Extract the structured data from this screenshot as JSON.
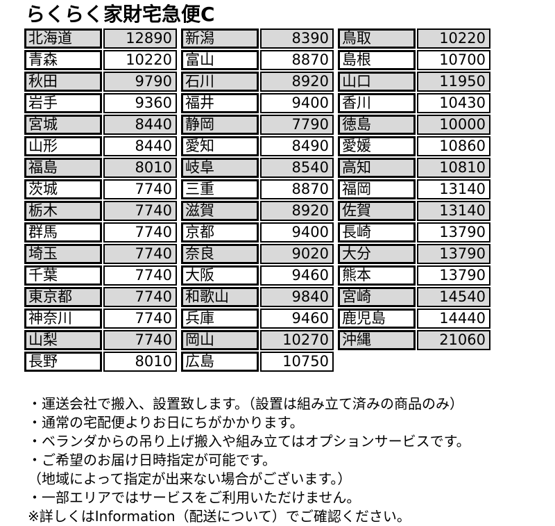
{
  "title": "らくらく家財宅急便C",
  "colors": {
    "row_shade": "#d9d9d9",
    "row_plain": "#ffffff",
    "border": "#000000",
    "text": "#000000"
  },
  "shipping_table": {
    "columns": [
      {
        "rows": [
          {
            "prefecture": "北海道",
            "price": "12890"
          },
          {
            "prefecture": "青森",
            "price": "10220"
          },
          {
            "prefecture": "秋田",
            "price": "9790"
          },
          {
            "prefecture": "岩手",
            "price": "9360"
          },
          {
            "prefecture": "宮城",
            "price": "8440"
          },
          {
            "prefecture": "山形",
            "price": "8440"
          },
          {
            "prefecture": "福島",
            "price": "8010"
          },
          {
            "prefecture": "茨城",
            "price": "7740"
          },
          {
            "prefecture": "栃木",
            "price": "7740"
          },
          {
            "prefecture": "群馬",
            "price": "7740"
          },
          {
            "prefecture": "埼玉",
            "price": "7740"
          },
          {
            "prefecture": "千葉",
            "price": "7740"
          },
          {
            "prefecture": "東京都",
            "price": "7740"
          },
          {
            "prefecture": "神奈川",
            "price": "7740"
          },
          {
            "prefecture": "山梨",
            "price": "7740"
          },
          {
            "prefecture": "長野",
            "price": "8010"
          }
        ]
      },
      {
        "rows": [
          {
            "prefecture": "新潟",
            "price": "8390"
          },
          {
            "prefecture": "富山",
            "price": "8870"
          },
          {
            "prefecture": "石川",
            "price": "8920"
          },
          {
            "prefecture": "福井",
            "price": "9400"
          },
          {
            "prefecture": "静岡",
            "price": "7790"
          },
          {
            "prefecture": "愛知",
            "price": "8490"
          },
          {
            "prefecture": "岐阜",
            "price": "8540"
          },
          {
            "prefecture": "三重",
            "price": "8870"
          },
          {
            "prefecture": "滋賀",
            "price": "8920"
          },
          {
            "prefecture": "京都",
            "price": "9400"
          },
          {
            "prefecture": "奈良",
            "price": "9020"
          },
          {
            "prefecture": "大阪",
            "price": "9460"
          },
          {
            "prefecture": "和歌山",
            "price": "9840"
          },
          {
            "prefecture": "兵庫",
            "price": "9460"
          },
          {
            "prefecture": "岡山",
            "price": "10270"
          },
          {
            "prefecture": "広島",
            "price": "10750"
          }
        ]
      },
      {
        "rows": [
          {
            "prefecture": "鳥取",
            "price": "10220"
          },
          {
            "prefecture": "島根",
            "price": "10700"
          },
          {
            "prefecture": "山口",
            "price": "11950"
          },
          {
            "prefecture": "香川",
            "price": "10430"
          },
          {
            "prefecture": "徳島",
            "price": "10000"
          },
          {
            "prefecture": "愛媛",
            "price": "10860"
          },
          {
            "prefecture": "高知",
            "price": "10810"
          },
          {
            "prefecture": "福岡",
            "price": "13140"
          },
          {
            "prefecture": "佐賀",
            "price": "13140"
          },
          {
            "prefecture": "長崎",
            "price": "13790"
          },
          {
            "prefecture": "大分",
            "price": "13790"
          },
          {
            "prefecture": "熊本",
            "price": "13790"
          },
          {
            "prefecture": "宮崎",
            "price": "14540"
          },
          {
            "prefecture": "鹿児島",
            "price": "14440"
          },
          {
            "prefecture": "沖縄",
            "price": "21060"
          }
        ]
      }
    ]
  },
  "notes": [
    "・運送会社で搬入、設置致します。（設置は組み立て済みの商品のみ）",
    "・通常の宅配便よりお日にちがかかります。",
    "・ベランダからの吊り上げ搬入や組み立てはオプションサービスです。",
    "・ご希望のお届け日時指定が可能です。",
    "（地域によって指定が出来ない場合がございます。）",
    "・一部エリアではサービスをご利用いただけません。",
    "※詳しくはInformation（配送について）でご確認ください。"
  ]
}
